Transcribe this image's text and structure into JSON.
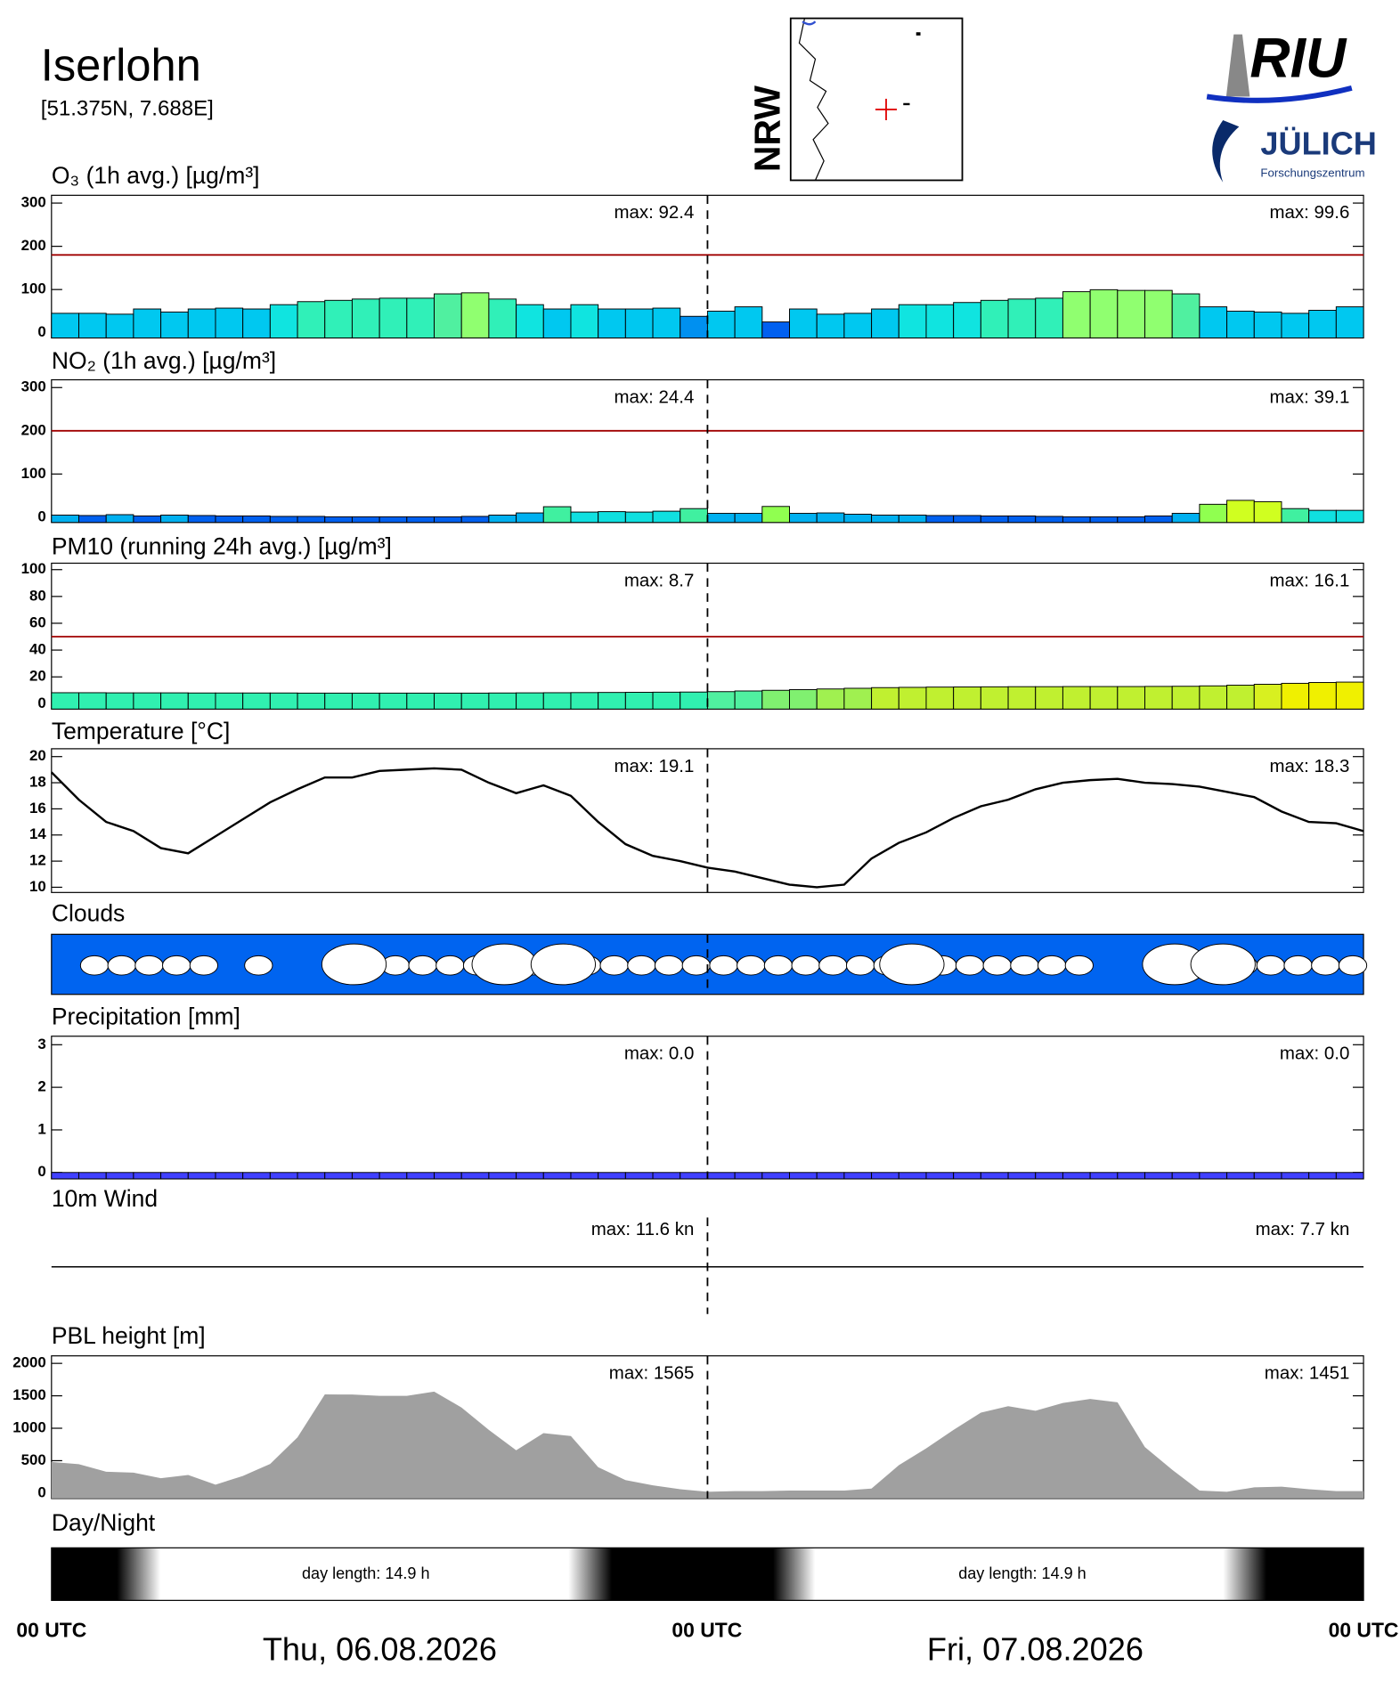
{
  "header": {
    "title": "Iserlohn",
    "coords": "[51.375N,  7.688E]",
    "map_label": "NRW",
    "logo_top": "RIU",
    "logo_bottom": "JÜLICH",
    "logo_sub": "Forschungszentrum"
  },
  "chart_data": [
    {
      "type": "bar",
      "title": "O₃ (1h avg.) [µg/m³]",
      "ylim": [
        -12,
        318
      ],
      "yticks": [
        0,
        100,
        200,
        300
      ],
      "threshold": 180,
      "threshold_color": "#a00000",
      "annotations": [
        "max:  92.4",
        "max:  99.6"
      ],
      "values": [
        45,
        45,
        43,
        55,
        48,
        55,
        57,
        55,
        65,
        72,
        75,
        78,
        80,
        80,
        90,
        92.4,
        78,
        65,
        55,
        65,
        55,
        55,
        57,
        38,
        50,
        60,
        25,
        55,
        43,
        45,
        55,
        65,
        65,
        70,
        75,
        78,
        80,
        95,
        99.6,
        98,
        98,
        90,
        60,
        50,
        48,
        45,
        52,
        60
      ],
      "colors": [
        "#00c8f0",
        "#00c8f0",
        "#00c8f0",
        "#00c8f0",
        "#00c8f0",
        "#00c8f0",
        "#00c8f0",
        "#00c8f0",
        "#10e4e0",
        "#30f0b8",
        "#30f0b8",
        "#30f0b8",
        "#30f0b8",
        "#30f0b8",
        "#50f0a0",
        "#90ff70",
        "#30f0b8",
        "#10e4e0",
        "#00c8f0",
        "#10e4e0",
        "#00c8f0",
        "#00c8f0",
        "#00c8f0",
        "#0090f0",
        "#00c8f0",
        "#00c8f0",
        "#0060f0",
        "#00c8f0",
        "#00c8f0",
        "#00c8f0",
        "#00c8f0",
        "#10e4e0",
        "#10e4e0",
        "#10e4e0",
        "#30f0b8",
        "#30f0b8",
        "#30f0b8",
        "#90ff70",
        "#90ff70",
        "#90ff70",
        "#90ff70",
        "#50f0a0",
        "#00c8f0",
        "#00c8f0",
        "#00c8f0",
        "#00c8f0",
        "#00c8f0",
        "#00c8f0"
      ]
    },
    {
      "type": "bar",
      "title": "NO₂ (1h avg.) [µg/m³]",
      "ylim": [
        -12,
        318
      ],
      "yticks": [
        0,
        100,
        200,
        300
      ],
      "threshold": 200,
      "threshold_color": "#a00000",
      "annotations": [
        "max:  24.4",
        "max:  39.1"
      ],
      "values": [
        5,
        4,
        6,
        3,
        5,
        4,
        3,
        3,
        2,
        2,
        1,
        1,
        1,
        1,
        1,
        2,
        5,
        10,
        24.4,
        12,
        13,
        12,
        14,
        20,
        9,
        9,
        25,
        9,
        10,
        7,
        5,
        5,
        4,
        4,
        3,
        3,
        2,
        1,
        1,
        1,
        3,
        9,
        30,
        39.1,
        36,
        20,
        16,
        16
      ],
      "colors": [
        "#00b0f0",
        "#0060f0",
        "#00b0f0",
        "#0060f0",
        "#00b0f0",
        "#0060f0",
        "#0060f0",
        "#0060f0",
        "#0060f0",
        "#0060f0",
        "#0060f0",
        "#0060f0",
        "#0060f0",
        "#0060f0",
        "#0060f0",
        "#0060f0",
        "#00b0f0",
        "#00b0f0",
        "#40f0a0",
        "#10e0e0",
        "#10e0e0",
        "#10e0e0",
        "#10e0e0",
        "#40f0a0",
        "#00b0f0",
        "#00b0f0",
        "#90ff50",
        "#00b0f0",
        "#00b0f0",
        "#00b0f0",
        "#00b0f0",
        "#00b0f0",
        "#0060f0",
        "#0060f0",
        "#0060f0",
        "#0060f0",
        "#0060f0",
        "#0060f0",
        "#0060f0",
        "#0060f0",
        "#0060f0",
        "#00b0f0",
        "#90ff50",
        "#d0ff20",
        "#d0ff20",
        "#40f0a0",
        "#10e0e0",
        "#10e0e0"
      ]
    },
    {
      "type": "bar",
      "title": "PM10 (running 24h avg.) [µg/m³]",
      "ylim": [
        -4,
        104.8
      ],
      "yticks": [
        0,
        20,
        40,
        60,
        80,
        100
      ],
      "threshold": 50,
      "threshold_color": "#a00000",
      "annotations": [
        "max:  8.7",
        "max:  16.1"
      ],
      "values": [
        8.2,
        8.2,
        8.1,
        8.1,
        8.1,
        8.0,
        8.0,
        8.0,
        8.0,
        7.9,
        7.9,
        7.9,
        7.9,
        7.9,
        7.9,
        7.9,
        8.0,
        8.1,
        8.2,
        8.3,
        8.4,
        8.5,
        8.6,
        8.7,
        9.0,
        9.5,
        10.0,
        10.5,
        11.0,
        11.5,
        12.0,
        12.2,
        12.4,
        12.5,
        12.6,
        12.7,
        12.7,
        12.8,
        12.8,
        12.8,
        12.9,
        13.0,
        13.3,
        13.8,
        14.5,
        15.2,
        15.8,
        16.1
      ],
      "colors": [
        "#30f0b0",
        "#30f0b0",
        "#30f0b0",
        "#30f0b0",
        "#30f0b0",
        "#30f0b0",
        "#30f0b0",
        "#30f0b0",
        "#30f0b0",
        "#30f0b0",
        "#30f0b0",
        "#30f0b0",
        "#30f0b0",
        "#30f0b0",
        "#30f0b0",
        "#30f0b0",
        "#30f0b0",
        "#30f0b0",
        "#30f0b0",
        "#30f0b0",
        "#30f0b0",
        "#30f0b0",
        "#30f0b0",
        "#30f0b0",
        "#50f0a0",
        "#50f0a0",
        "#80f070",
        "#80f070",
        "#a0f050",
        "#a0f050",
        "#c0f030",
        "#c0f030",
        "#c0f030",
        "#c0f030",
        "#c0f030",
        "#c0f030",
        "#c0f030",
        "#c0f030",
        "#c0f030",
        "#c0f030",
        "#c0f030",
        "#c0f030",
        "#c0f030",
        "#c0f030",
        "#d8f020",
        "#f0f000",
        "#f0f000",
        "#f0f000"
      ]
    },
    {
      "type": "line",
      "title": "Temperature [°C]",
      "ylim": [
        9.6,
        20.6
      ],
      "yticks": [
        10,
        12,
        14,
        16,
        18,
        20
      ],
      "color": "#000000",
      "annotations": [
        "max:  19.1",
        "max:  18.3"
      ],
      "values": [
        18.8,
        16.7,
        15.0,
        14.3,
        13.0,
        12.6,
        13.9,
        15.2,
        16.5,
        17.5,
        18.4,
        18.4,
        18.9,
        19.0,
        19.1,
        19.0,
        18.0,
        17.2,
        17.8,
        17.0,
        15.0,
        13.3,
        12.4,
        12.0,
        11.5,
        11.2,
        10.7,
        10.2,
        10.0,
        10.2,
        12.2,
        13.4,
        14.2,
        15.3,
        16.2,
        16.7,
        17.5,
        18.0,
        18.2,
        18.3,
        18.0,
        17.9,
        17.7,
        17.3,
        16.9,
        15.8,
        15.0,
        14.9,
        14.3
      ]
    },
    {
      "type": "clouds",
      "title": "Clouds",
      "color": "#0064f0"
    },
    {
      "type": "bar",
      "title": "Precipitation [mm]",
      "ylim": [
        -0.15,
        3.2
      ],
      "yticks": [
        0,
        1,
        2,
        3
      ],
      "color": "#4040ff",
      "annotations": [
        "max:  0.0",
        "max:  0.0"
      ],
      "values": [
        0,
        0,
        0,
        0,
        0,
        0,
        0,
        0,
        0,
        0,
        0,
        0,
        0,
        0,
        0,
        0,
        0,
        0,
        0,
        0,
        0,
        0,
        0,
        0,
        0,
        0,
        0,
        0,
        0,
        0,
        0,
        0,
        0,
        0,
        0,
        0,
        0,
        0,
        0,
        0,
        0,
        0,
        0,
        0,
        0,
        0,
        0,
        0
      ]
    },
    {
      "type": "wind",
      "title": "10m Wind",
      "annotations": [
        "max:  11.6 kn",
        "max:  7.7 kn"
      ]
    },
    {
      "type": "area",
      "title": "PBL height [m]",
      "ylim": [
        -83,
        2116
      ],
      "yticks": [
        0,
        500,
        1000,
        1500,
        2000
      ],
      "color": "#a0a0a0",
      "annotations": [
        "max:  1565",
        "max:  1451"
      ],
      "values": [
        480,
        446,
        330,
        315,
        230,
        280,
        130,
        265,
        450,
        860,
        1521,
        1520,
        1500,
        1500,
        1565,
        1320,
        975,
        660,
        925,
        880,
        400,
        200,
        120,
        60,
        20,
        30,
        30,
        40,
        40,
        40,
        70,
        430,
        690,
        975,
        1240,
        1340,
        1270,
        1390,
        1451,
        1400,
        710,
        360,
        40,
        20,
        90,
        100,
        60,
        30,
        30
      ]
    },
    {
      "type": "daynight",
      "title": "Day/Night",
      "annotations": [
        "day length:  14.9 h",
        "day length:  14.9 h"
      ]
    }
  ],
  "x_axis": {
    "tick_labels": [
      "00 UTC",
      "00 UTC",
      "00 UTC"
    ],
    "dates": [
      "Thu, 06.08.2026",
      "Fri, 07.08.2026"
    ]
  }
}
